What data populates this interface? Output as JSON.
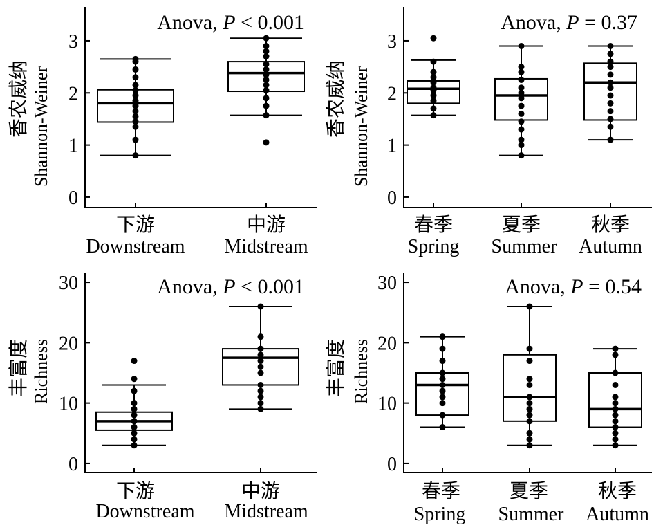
{
  "chart_data": [
    {
      "type": "box",
      "title_prefix": "Anova, ",
      "title_stat": "P",
      "title_suffix": " < 0.001",
      "ylabel_cn": "香农威纳",
      "ylabel_en": "Shannon-Weiner",
      "ylim": [
        -0.2,
        3.65
      ],
      "yticks": [
        0,
        1,
        2,
        3
      ],
      "categories": [
        {
          "cn": "下游",
          "en": "Downstream"
        },
        {
          "cn": "中游",
          "en": "Midstream"
        }
      ],
      "boxes": [
        {
          "whisker_low": 0.8,
          "q1": 1.44,
          "median": 1.8,
          "q3": 2.06,
          "whisker_high": 2.65,
          "points": [
            0.8,
            1.1,
            1.35,
            1.45,
            1.55,
            1.65,
            1.75,
            1.85,
            1.95,
            2.05,
            2.15,
            2.3,
            2.45,
            2.6,
            2.65
          ]
        },
        {
          "whisker_low": 1.57,
          "q1": 2.03,
          "median": 2.38,
          "q3": 2.6,
          "whisker_high": 3.05,
          "points": [
            1.05,
            1.57,
            1.75,
            1.9,
            2.05,
            2.15,
            2.25,
            2.35,
            2.45,
            2.55,
            2.7,
            2.8,
            2.9,
            3.05
          ]
        }
      ]
    },
    {
      "type": "box",
      "title_prefix": "Anova, ",
      "title_stat": "P",
      "title_suffix": " = 0.37",
      "ylabel_cn": "香农威纳",
      "ylabel_en": "Shannon-Weiner",
      "ylim": [
        -0.2,
        3.65
      ],
      "yticks": [
        0,
        1,
        2,
        3
      ],
      "categories": [
        {
          "cn": "春季",
          "en": "Spring"
        },
        {
          "cn": "夏季",
          "en": "Summer"
        },
        {
          "cn": "秋季",
          "en": "Autumn"
        }
      ],
      "boxes": [
        {
          "whisker_low": 1.57,
          "q1": 1.8,
          "median": 2.08,
          "q3": 2.23,
          "whisker_high": 2.63,
          "points": [
            1.57,
            1.7,
            1.85,
            1.95,
            2.05,
            2.1,
            2.2,
            2.3,
            2.4,
            2.6,
            3.05
          ]
        },
        {
          "whisker_low": 0.8,
          "q1": 1.48,
          "median": 1.95,
          "q3": 2.27,
          "whisker_high": 2.9,
          "points": [
            0.8,
            1.0,
            1.1,
            1.3,
            1.45,
            1.6,
            1.75,
            1.9,
            2.0,
            2.1,
            2.25,
            2.4,
            2.5,
            2.9
          ]
        },
        {
          "whisker_low": 1.1,
          "q1": 1.48,
          "median": 2.2,
          "q3": 2.57,
          "whisker_high": 2.9,
          "points": [
            1.1,
            1.35,
            1.5,
            1.65,
            1.8,
            1.95,
            2.1,
            2.2,
            2.35,
            2.5,
            2.6,
            2.75,
            2.9
          ]
        }
      ]
    },
    {
      "type": "box",
      "title_prefix": "Anova, ",
      "title_stat": "P",
      "title_suffix": " < 0.001",
      "ylabel_cn": "丰富度",
      "ylabel_en": "Richness",
      "ylim": [
        -1.5,
        31.5
      ],
      "yticks": [
        0,
        10,
        20,
        30
      ],
      "categories": [
        {
          "cn": "下游",
          "en": "Downstream"
        },
        {
          "cn": "中游",
          "en": "Midstream"
        }
      ],
      "boxes": [
        {
          "whisker_low": 3,
          "q1": 5.5,
          "median": 7,
          "q3": 8.5,
          "whisker_high": 13,
          "points": [
            3,
            4,
            5,
            6,
            7,
            8,
            9,
            10,
            12,
            14,
            17
          ]
        },
        {
          "whisker_low": 9,
          "q1": 13,
          "median": 17.5,
          "q3": 19,
          "whisker_high": 26,
          "points": [
            9,
            10,
            11,
            12,
            13,
            15,
            16,
            17,
            18,
            19,
            21,
            26
          ]
        }
      ]
    },
    {
      "type": "box",
      "title_prefix": "Anova, ",
      "title_stat": "P",
      "title_suffix": " = 0.54",
      "ylabel_cn": "丰富度",
      "ylabel_en": "Richness",
      "ylim": [
        -1.5,
        31.5
      ],
      "yticks": [
        0,
        10,
        20,
        30
      ],
      "categories": [
        {
          "cn": "春季",
          "en": "Spring"
        },
        {
          "cn": "夏季",
          "en": "Summer"
        },
        {
          "cn": "秋季",
          "en": "Autumn"
        }
      ],
      "boxes": [
        {
          "whisker_low": 6,
          "q1": 8,
          "median": 13,
          "q3": 15,
          "whisker_high": 21,
          "points": [
            6,
            8,
            10,
            11,
            12,
            13,
            14,
            15,
            17,
            19,
            21
          ]
        },
        {
          "whisker_low": 3,
          "q1": 7,
          "median": 11,
          "q3": 18,
          "whisker_high": 26,
          "points": [
            3,
            4,
            5,
            7,
            8,
            9,
            10,
            11,
            13,
            14,
            17,
            19,
            26
          ]
        },
        {
          "whisker_low": 3,
          "q1": 6,
          "median": 9,
          "q3": 15,
          "whisker_high": 19,
          "points": [
            3,
            4,
            5,
            6,
            7,
            8,
            9,
            10,
            11,
            13,
            15,
            18,
            19
          ]
        }
      ]
    }
  ]
}
